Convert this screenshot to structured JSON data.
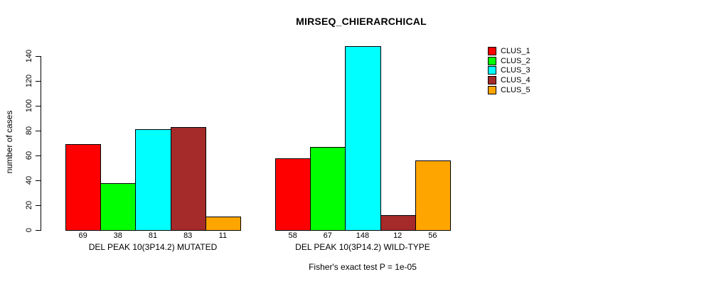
{
  "chart_data": {
    "type": "bar",
    "title": "MIRSEQ_CHIERARCHICAL",
    "subtitle": "Fisher's exact test P = 1e-05",
    "ylabel": "number of cases",
    "xlabel": "",
    "ylim": [
      0,
      140
    ],
    "yticks": [
      0,
      20,
      40,
      60,
      80,
      100,
      120,
      140
    ],
    "grid": false,
    "legend_position": "top-right",
    "legend": [
      {
        "label": "CLUS_1",
        "color": "#FF0000"
      },
      {
        "label": "CLUS_2",
        "color": "#00FF00"
      },
      {
        "label": "CLUS_3",
        "color": "#00FFFF"
      },
      {
        "label": "CLUS_4",
        "color": "#A52A2A"
      },
      {
        "label": "CLUS_5",
        "color": "#FFA500"
      }
    ],
    "groups": [
      {
        "label": "DEL PEAK 10(3P14.2) MUTATED",
        "values": [
          69,
          38,
          81,
          83,
          11
        ]
      },
      {
        "label": "DEL PEAK 10(3P14.2) WILD-TYPE",
        "values": [
          58,
          67,
          148,
          12,
          56
        ]
      }
    ]
  }
}
